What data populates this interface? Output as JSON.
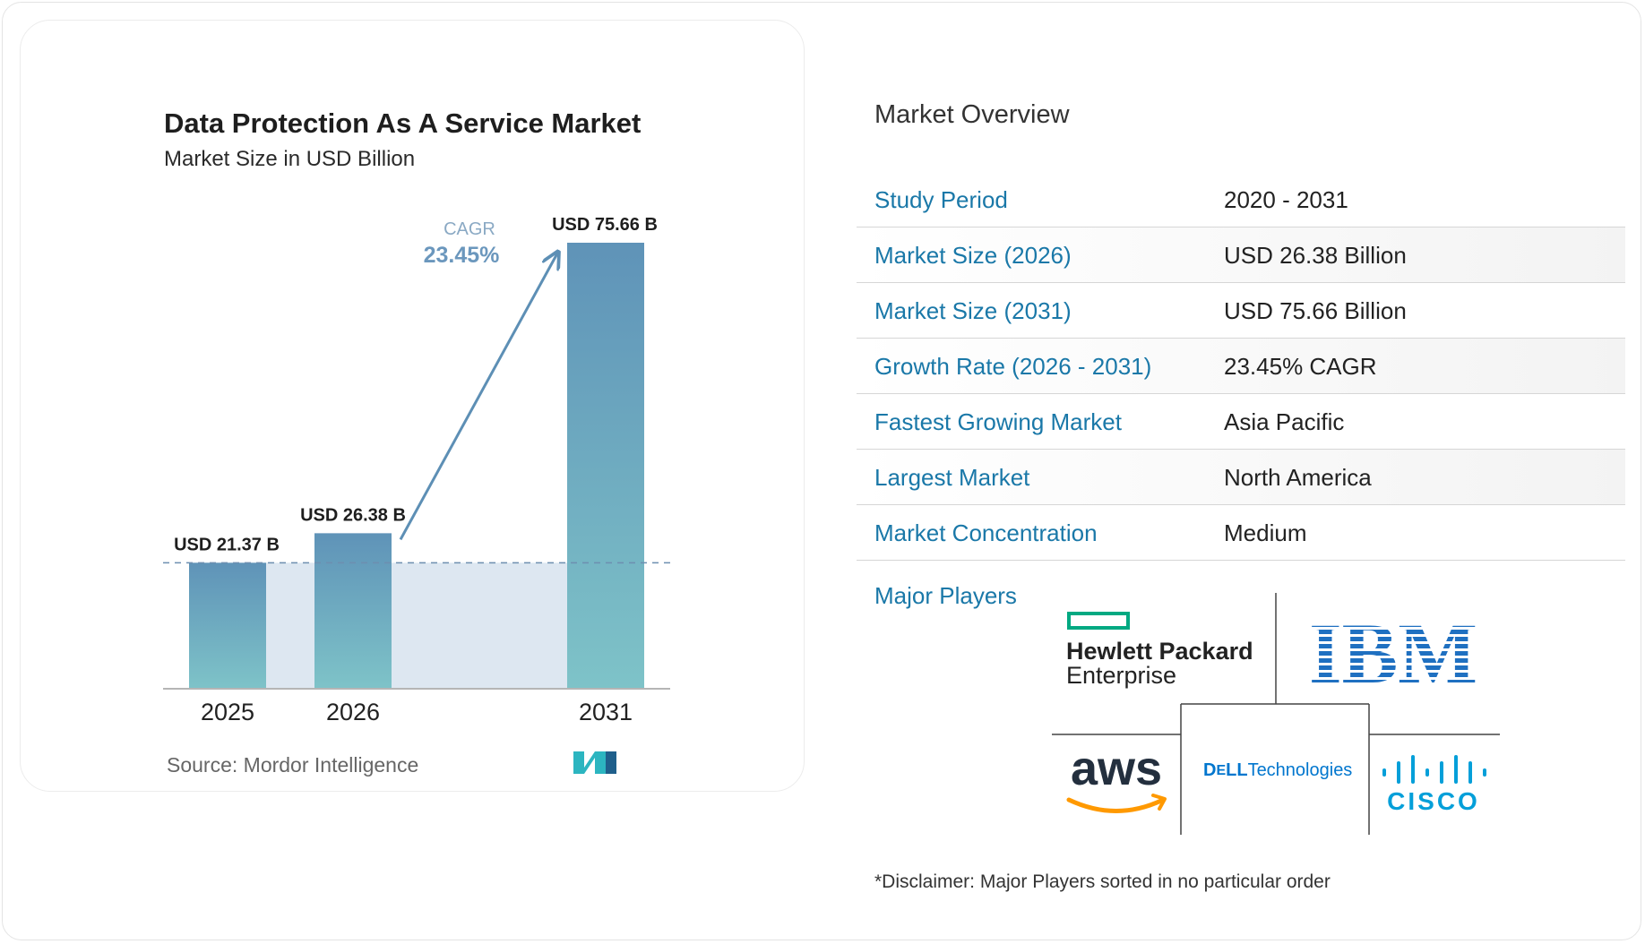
{
  "chart_data": {
    "type": "bar",
    "title": "Data Protection As A Service Market",
    "subtitle": "Market Size in USD Billion",
    "categories": [
      "2025",
      "2026",
      "2031"
    ],
    "values": [
      21.37,
      26.38,
      75.66
    ],
    "data_labels": [
      "USD 21.37 B",
      "USD 26.38 B",
      "USD 75.66 B"
    ],
    "cagr_label": "CAGR",
    "cagr_value": "23.45%",
    "ylim": [
      0,
      80
    ],
    "grid": false
  },
  "source": "Source:  Mordor Intelligence",
  "overview": {
    "title": "Market Overview",
    "rows": [
      {
        "label": "Study Period",
        "value": "2020 - 2031"
      },
      {
        "label": "Market Size (2026)",
        "value": "USD 26.38 Billion"
      },
      {
        "label": "Market Size (2031)",
        "value": "USD 75.66 Billion"
      },
      {
        "label": "Growth Rate (2026 - 2031)",
        "value": "23.45% CAGR"
      },
      {
        "label": "Fastest Growing Market",
        "value": "Asia Pacific"
      },
      {
        "label": "Largest Market",
        "value": "North America"
      },
      {
        "label": "Market Concentration",
        "value": "Medium"
      }
    ]
  },
  "players": {
    "label": "Major Players",
    "logos": {
      "hpe_line1": "Hewlett Packard",
      "hpe_line2": "Enterprise",
      "ibm": "IBM",
      "aws": "aws",
      "dell_a": "D",
      "dell_e": "E",
      "dell_b": "LL",
      "dell_tech": "Technologies",
      "cisco": "CISCO"
    }
  },
  "disclaimer": "*Disclaimer: Major Players sorted in no particular order",
  "colors": {
    "bar_top": "#5f93b8",
    "bar_bottom": "#7ec3c8",
    "accent_blue": "#1a78a8",
    "cagr_arrow": "#5d8fb5",
    "ibm_blue": "#1f70c1",
    "hpe_green": "#01a982",
    "aws_orange": "#ff9900",
    "dell_blue": "#0076ce",
    "cisco_blue": "#049fd9"
  }
}
